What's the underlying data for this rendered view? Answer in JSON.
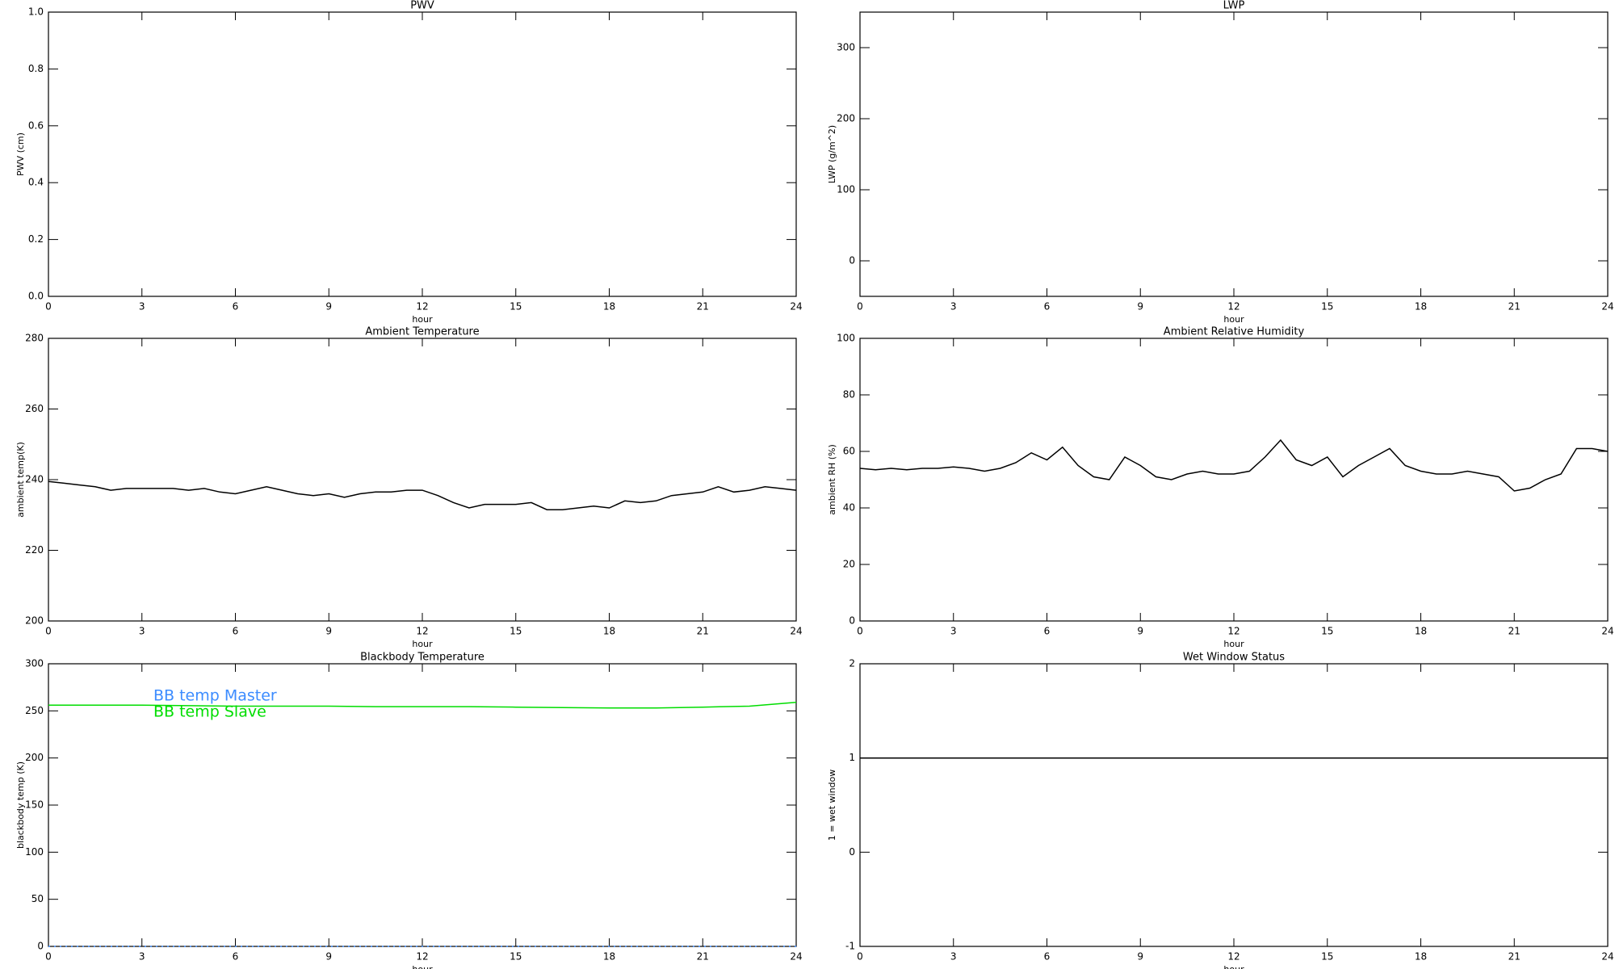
{
  "chart_data": [
    {
      "type": "line",
      "title": "PWV",
      "xlabel": "hour",
      "ylabel": "PWV (cm)",
      "xlim": [
        0,
        24
      ],
      "xticks": [
        0,
        3,
        6,
        9,
        12,
        15,
        18,
        21,
        24
      ],
      "ylim": [
        0,
        1
      ],
      "yticks": [
        {
          "value": 0,
          "label": "0.0"
        },
        0.2,
        0.4,
        0.6,
        0.8,
        {
          "value": 1,
          "label": "1.0"
        }
      ],
      "x": [],
      "series": []
    },
    {
      "type": "line",
      "title": "LWP",
      "xlabel": "hour",
      "ylabel": "LWP (g/m^2)",
      "xlim": [
        0,
        24
      ],
      "xticks": [
        0,
        3,
        6,
        9,
        12,
        15,
        18,
        21,
        24
      ],
      "ylim": [
        -50,
        350
      ],
      "yticks": [
        0,
        100,
        200,
        300
      ],
      "x": [],
      "series": []
    },
    {
      "type": "line",
      "title": "Ambient Temperature",
      "xlabel": "hour",
      "ylabel": "ambient temp(K)",
      "xlim": [
        0,
        24
      ],
      "xticks": [
        0,
        3,
        6,
        9,
        12,
        15,
        18,
        21,
        24
      ],
      "ylim": [
        200,
        280
      ],
      "yticks": [
        200,
        220,
        240,
        260,
        280
      ],
      "x": [
        0,
        0.5,
        1,
        1.5,
        2,
        2.5,
        3,
        3.5,
        4,
        4.5,
        5,
        5.5,
        6,
        6.5,
        7,
        7.5,
        8,
        8.5,
        9,
        9.5,
        10,
        10.5,
        11,
        11.5,
        12,
        12.5,
        13,
        13.5,
        14,
        14.5,
        15,
        15.5,
        16,
        16.5,
        17,
        17.5,
        18,
        18.5,
        19,
        19.5,
        20,
        20.5,
        21,
        21.5,
        22,
        22.5,
        23,
        23.5,
        24
      ],
      "series": [
        {
          "color": "#000000",
          "values": [
            239.5,
            239,
            238.5,
            238,
            237,
            237.5,
            237.5,
            237.5,
            237.5,
            237,
            237.5,
            236.5,
            236,
            237,
            238,
            237,
            236,
            235.5,
            236,
            235,
            236,
            236.5,
            236.5,
            237,
            237,
            235.5,
            233.5,
            232,
            233,
            233,
            233,
            233.5,
            231.5,
            231.5,
            232,
            232.5,
            232,
            234,
            233.5,
            234,
            235.5,
            236,
            236.5,
            238,
            236.5,
            237,
            238,
            237.5,
            237
          ]
        }
      ]
    },
    {
      "type": "line",
      "title": "Ambient Relative Humidity",
      "xlabel": "hour",
      "ylabel": "ambient RH (%)",
      "xlim": [
        0,
        24
      ],
      "xticks": [
        0,
        3,
        6,
        9,
        12,
        15,
        18,
        21,
        24
      ],
      "ylim": [
        0,
        100
      ],
      "yticks": [
        0,
        20,
        40,
        60,
        80,
        100
      ],
      "x": [
        0,
        0.5,
        1,
        1.5,
        2,
        2.5,
        3,
        3.5,
        4,
        4.5,
        5,
        5.5,
        6,
        6.5,
        7,
        7.5,
        8,
        8.5,
        9,
        9.5,
        10,
        10.5,
        11,
        11.5,
        12,
        12.5,
        13,
        13.5,
        14,
        14.5,
        15,
        15.5,
        16,
        16.5,
        17,
        17.5,
        18,
        18.5,
        19,
        19.5,
        20,
        20.5,
        21,
        21.5,
        22,
        22.5,
        23,
        23.5,
        24
      ],
      "series": [
        {
          "color": "#000000",
          "values": [
            54,
            53.5,
            54,
            53.5,
            54,
            54,
            54.5,
            54,
            53,
            54,
            56,
            59.5,
            57,
            61.5,
            55,
            51,
            50,
            58,
            55,
            51,
            50,
            52,
            53,
            52,
            52,
            53,
            58,
            64,
            57,
            55,
            58,
            51,
            55,
            58,
            61,
            55,
            53,
            52,
            52,
            53,
            52,
            51,
            46,
            47,
            50,
            52,
            61,
            61,
            60
          ]
        }
      ]
    },
    {
      "type": "line",
      "title": "Blackbody Temperature",
      "xlabel": "hour",
      "ylabel": "blackbody temp (K)",
      "xlim": [
        0,
        24
      ],
      "xticks": [
        0,
        3,
        6,
        9,
        12,
        15,
        18,
        21,
        24
      ],
      "ylim": [
        0,
        300
      ],
      "yticks": [
        0,
        50,
        100,
        150,
        200,
        250,
        300
      ],
      "x": [
        0,
        1.5,
        3,
        4.5,
        6,
        7.5,
        9,
        10.5,
        12,
        13.5,
        15,
        16.5,
        18,
        19.5,
        21,
        22.5,
        24
      ],
      "series": [
        {
          "name": "BB temp Master",
          "color": "#3c8cff",
          "values": [
            0,
            0,
            0,
            0,
            0,
            0,
            0,
            0,
            0,
            0,
            0,
            0,
            0,
            0,
            0,
            0,
            0
          ]
        },
        {
          "name": "BB temp Slave",
          "color": "#00dd00",
          "values": [
            256,
            256,
            256,
            255.5,
            255,
            255,
            255,
            254.5,
            254.5,
            254.5,
            254,
            253.5,
            253,
            253,
            254,
            255,
            259
          ]
        }
      ]
    },
    {
      "type": "line",
      "title": "Wet Window Status",
      "xlabel": "hour",
      "ylabel": "1 = wet window",
      "xlim": [
        0,
        24
      ],
      "xticks": [
        0,
        3,
        6,
        9,
        12,
        15,
        18,
        21,
        24
      ],
      "ylim": [
        -1,
        2
      ],
      "yticks": [
        -1,
        0,
        1,
        2
      ],
      "x": [
        0,
        24
      ],
      "series": [
        {
          "color": "#000000",
          "values": [
            1,
            1
          ]
        }
      ]
    }
  ]
}
